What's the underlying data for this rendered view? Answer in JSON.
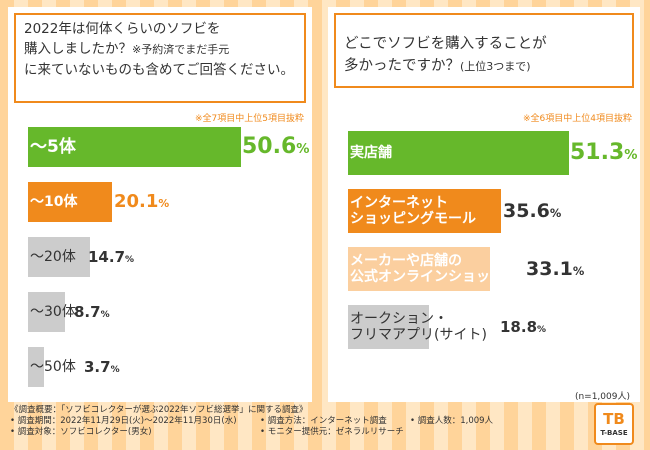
{
  "left": {
    "question_line1": "2022年は何体くらいのソフビを",
    "question_line2": "購入しましたか？",
    "question_note_a": "※予約済でまだ手元",
    "question_line3": "に来ていないものも含めてご回答ください。",
    "subnote": "※全7項目中上位5項目抜粋"
  },
  "right": {
    "question_line1": "どこでソフビを購入することが",
    "question_line2": "多かったですか？",
    "question_note": "(上位3つまで)",
    "subnote": "※全6項目中上位4項目抜粋",
    "n_label": "(n=1,009人)"
  },
  "chart_data": [
    {
      "type": "bar",
      "orientation": "horizontal",
      "categories": [
        "〜5体",
        "〜10体",
        "〜20体",
        "〜30体",
        "〜50体"
      ],
      "values": [
        50.6,
        20.1,
        14.7,
        8.7,
        3.7
      ],
      "value_labels": [
        "50.6",
        "20.1",
        "14.7",
        "8.7",
        "3.7"
      ],
      "unit": "%",
      "colors": [
        "#66b82b",
        "#f08a1c",
        "#cccccc",
        "#cccccc",
        "#cccccc"
      ]
    },
    {
      "type": "bar",
      "orientation": "horizontal",
      "categories": [
        "実店舗",
        "インターネットショッピングモール",
        "メーカーや店舗の公式オンラインショップ",
        "オークション・フリマアプリ(サイト)"
      ],
      "category_lines": [
        [
          "実店舗"
        ],
        [
          "インターネット",
          "ショッピングモール"
        ],
        [
          "メーカーや店舗の",
          "公式オンラインショップ"
        ],
        [
          "オークション・",
          "フリマアプリ(サイト)"
        ]
      ],
      "values": [
        51.3,
        35.6,
        33.1,
        18.8
      ],
      "value_labels": [
        "51.3",
        "35.6",
        "33.1",
        "18.8"
      ],
      "unit": "%",
      "colors": [
        "#66b82b",
        "#f08a1c",
        "#fbcf9f",
        "#cccccc"
      ]
    }
  ],
  "footer": {
    "line1": "《調査概要：「ソフビコレクターが選ぶ2022年ソフビ総選挙」に関する調査》",
    "period": "• 調査期間：2022年11月29日(火)〜2022年11月30日(水)",
    "method": "• 調査方法：インターネット調査",
    "people": "• 調査人数：1,009人",
    "target": "• 調査対象：ソフビコレクター(男女)",
    "provider": "• モニター提供元：ゼネラルリサーチ"
  },
  "logo": {
    "mark": "TB",
    "name": "T-BASE"
  }
}
